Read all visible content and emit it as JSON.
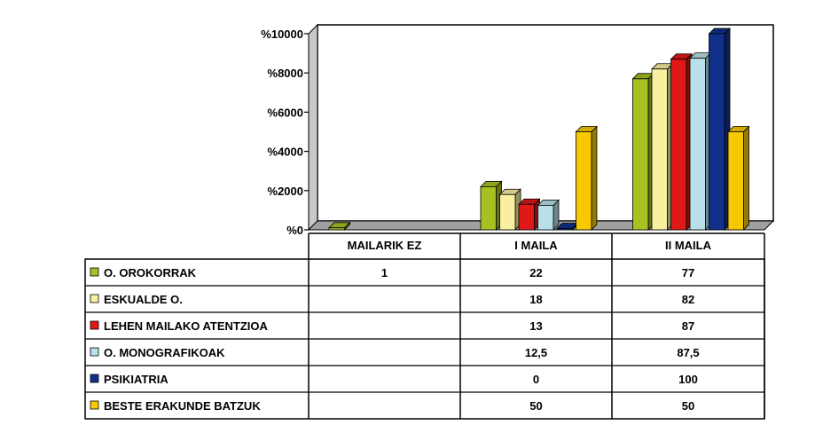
{
  "chart_data": {
    "type": "bar",
    "categories": [
      "MAILARIK EZ",
      "I MAILA",
      "II MAILA"
    ],
    "series": [
      {
        "name": "O. OROKORRAK",
        "color": "#a8c020",
        "values": [
          1,
          22,
          77
        ],
        "labels": [
          "1",
          "22",
          "77"
        ]
      },
      {
        "name": "ESKUALDE O.",
        "color": "#f8f0a0",
        "values": [
          0,
          18,
          82
        ],
        "labels": [
          "",
          "18",
          "82"
        ]
      },
      {
        "name": "LEHEN MAILAKO ATENTZIOA",
        "color": "#e01818",
        "values": [
          0,
          13,
          87
        ],
        "labels": [
          "",
          "13",
          "87"
        ]
      },
      {
        "name": "O. MONOGRAFIKOAK",
        "color": "#b8e0e8",
        "values": [
          0,
          12.5,
          87.5
        ],
        "labels": [
          "",
          "12,5",
          "87,5"
        ]
      },
      {
        "name": "PSIKIATRIA",
        "color": "#10308c",
        "values": [
          0,
          0,
          100
        ],
        "labels": [
          "",
          "0",
          "100"
        ]
      },
      {
        "name": "BESTE ERAKUNDE BATZUK",
        "color": "#f8c800",
        "values": [
          0,
          50,
          50
        ],
        "labels": [
          "",
          "50",
          "50"
        ]
      }
    ],
    "y_tick_labels": [
      "%0",
      "%2000",
      "%4000",
      "%6000",
      "%8000",
      "%10000"
    ],
    "ylim": [
      0,
      100
    ],
    "grid": false,
    "legend": "table-left",
    "title": "",
    "xlabel": "",
    "ylabel": ""
  }
}
